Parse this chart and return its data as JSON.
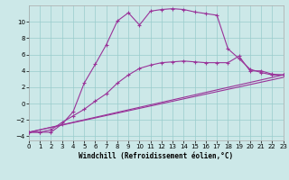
{
  "background_color": "#cce8e8",
  "grid_color": "#99cccc",
  "line_color": "#993399",
  "xlim": [
    0,
    23
  ],
  "ylim": [
    -4.5,
    12.0
  ],
  "xlabel": "Windchill (Refroidissement éolien,°C)",
  "ytick_vals": [
    -4,
    -2,
    0,
    2,
    4,
    6,
    8,
    10
  ],
  "xtick_vals": [
    0,
    1,
    2,
    3,
    4,
    5,
    6,
    7,
    8,
    9,
    10,
    11,
    12,
    13,
    14,
    15,
    16,
    17,
    18,
    19,
    20,
    21,
    22,
    23
  ],
  "line1_x": [
    0,
    1,
    2,
    3,
    4,
    5,
    6,
    7,
    8,
    9,
    10,
    11,
    12,
    13,
    14,
    15,
    16,
    17,
    18,
    19,
    20,
    21,
    22,
    23
  ],
  "line1_y": [
    -3.5,
    -3.5,
    -3.5,
    -2.5,
    -1.0,
    2.5,
    4.8,
    7.2,
    10.1,
    11.1,
    9.6,
    11.3,
    11.5,
    11.6,
    11.5,
    11.2,
    11.0,
    10.8,
    6.7,
    5.5,
    4.2,
    3.8,
    3.5,
    3.5
  ],
  "line2_x": [
    0,
    1,
    2,
    3,
    4,
    5,
    6,
    7,
    8,
    9,
    10,
    11,
    12,
    13,
    14,
    15,
    16,
    17,
    18,
    19,
    20,
    21,
    22,
    23
  ],
  "line2_y": [
    -3.5,
    -3.5,
    -3.2,
    -2.3,
    -1.5,
    -0.7,
    0.3,
    1.2,
    2.5,
    3.5,
    4.3,
    4.7,
    5.0,
    5.1,
    5.2,
    5.1,
    5.0,
    5.0,
    5.0,
    5.8,
    4.0,
    4.0,
    3.6,
    3.5
  ],
  "line3_x": [
    0,
    23
  ],
  "line3_y": [
    -3.5,
    3.5
  ],
  "line4_x": [
    0,
    23
  ],
  "line4_y": [
    -3.5,
    3.2
  ]
}
